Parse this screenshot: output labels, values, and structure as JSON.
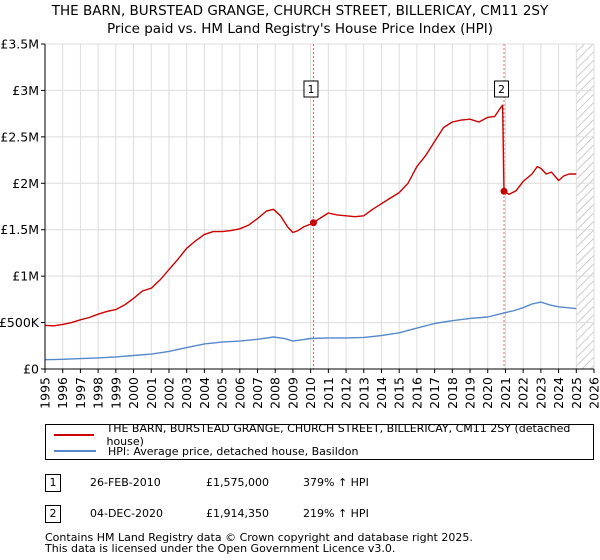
{
  "colors": {
    "property_line": "#cc0000",
    "hpi_line": "#5588cc",
    "grid": "#dddddd",
    "plot_bg": "#ffffff",
    "marker_line": "#e06666",
    "highlight_band": "#e6ecf7"
  },
  "chart_data": {
    "type": "line",
    "title": "THE BARN, BURSTEAD GRANGE, CHURCH STREET, BILLERICAY, CM11 2SY",
    "subtitle": "Price paid vs. HM Land Registry's House Price Index (HPI)",
    "xlim": [
      1995,
      2026
    ],
    "ylim": [
      0,
      3500000
    ],
    "x_ticks": [
      "1995",
      "1996",
      "1997",
      "1998",
      "1999",
      "2000",
      "2001",
      "2002",
      "2003",
      "2004",
      "2005",
      "2006",
      "2007",
      "2008",
      "2009",
      "2010",
      "2011",
      "2012",
      "2013",
      "2014",
      "2015",
      "2016",
      "2017",
      "2018",
      "2019",
      "2020",
      "2021",
      "2022",
      "2023",
      "2024",
      "2025",
      "2026"
    ],
    "y_ticks": [
      {
        "value": 0,
        "label": "£0"
      },
      {
        "value": 500000,
        "label": "£500K"
      },
      {
        "value": 1000000,
        "label": "£1M"
      },
      {
        "value": 1500000,
        "label": "£1.5M"
      },
      {
        "value": 2000000,
        "label": "£2M"
      },
      {
        "value": 2500000,
        "label": "£2.5M"
      },
      {
        "value": 3000000,
        "label": "£3M"
      },
      {
        "value": 3500000,
        "label": "£3.5M"
      }
    ],
    "grid": true,
    "hatched_future_from": 2025.0,
    "series": [
      {
        "name": "THE BARN, BURSTEAD GRANGE, CHURCH STREET, BILLERICAY, CM11 2SY (detached house)",
        "color": "#cc0000",
        "x": [
          1995.0,
          1995.5,
          1996.0,
          1996.5,
          1997.0,
          1997.5,
          1998.0,
          1998.5,
          1999.0,
          1999.5,
          2000.0,
          2000.5,
          2001.0,
          2001.5,
          2002.0,
          2002.5,
          2003.0,
          2003.5,
          2004.0,
          2004.5,
          2005.0,
          2005.5,
          2006.0,
          2006.5,
          2007.0,
          2007.5,
          2007.9,
          2008.3,
          2008.7,
          2009.0,
          2009.3,
          2009.6,
          2010.0,
          2010.16,
          2010.5,
          2011.0,
          2011.5,
          2012.0,
          2012.5,
          2013.0,
          2013.5,
          2014.0,
          2014.5,
          2015.0,
          2015.5,
          2016.0,
          2016.5,
          2017.0,
          2017.5,
          2018.0,
          2018.5,
          2019.0,
          2019.5,
          2020.0,
          2020.4,
          2020.75,
          2020.84,
          2020.92,
          2021.2,
          2021.6,
          2022.0,
          2022.5,
          2022.8,
          2023.0,
          2023.3,
          2023.6,
          2024.0,
          2024.3,
          2024.6,
          2025.0
        ],
        "y": [
          470000,
          465000,
          480000,
          500000,
          530000,
          555000,
          590000,
          620000,
          640000,
          690000,
          760000,
          840000,
          870000,
          960000,
          1070000,
          1180000,
          1300000,
          1380000,
          1450000,
          1480000,
          1480000,
          1490000,
          1510000,
          1550000,
          1620000,
          1700000,
          1720000,
          1650000,
          1530000,
          1470000,
          1490000,
          1530000,
          1560000,
          1575000,
          1620000,
          1680000,
          1660000,
          1650000,
          1640000,
          1650000,
          1720000,
          1780000,
          1840000,
          1900000,
          2000000,
          2180000,
          2300000,
          2450000,
          2600000,
          2660000,
          2680000,
          2690000,
          2660000,
          2710000,
          2720000,
          2820000,
          2840000,
          1914350,
          1880000,
          1920000,
          2020000,
          2100000,
          2180000,
          2160000,
          2100000,
          2120000,
          2030000,
          2080000,
          2100000,
          2100000
        ]
      },
      {
        "name": "HPI: Average price, detached house, Basildon",
        "color": "#5588cc",
        "x": [
          1995.0,
          1996.0,
          1997.0,
          1998.0,
          1999.0,
          2000.0,
          2001.0,
          2002.0,
          2003.0,
          2004.0,
          2005.0,
          2006.0,
          2007.0,
          2007.9,
          2008.5,
          2009.0,
          2009.5,
          2010.0,
          2011.0,
          2012.0,
          2013.0,
          2014.0,
          2015.0,
          2016.0,
          2017.0,
          2018.0,
          2019.0,
          2020.0,
          2020.84,
          2021.5,
          2022.0,
          2022.5,
          2023.0,
          2023.5,
          2024.0,
          2024.5,
          2025.0
        ],
        "y": [
          100000,
          105000,
          112000,
          120000,
          130000,
          145000,
          160000,
          190000,
          230000,
          270000,
          290000,
          300000,
          320000,
          345000,
          330000,
          300000,
          315000,
          328000,
          335000,
          335000,
          340000,
          360000,
          390000,
          440000,
          490000,
          520000,
          545000,
          560000,
          600000,
          630000,
          660000,
          700000,
          720000,
          690000,
          670000,
          660000,
          650000
        ]
      }
    ],
    "transactions": [
      {
        "label": "1",
        "x": 2010.16,
        "price": 1575000
      },
      {
        "label": "2",
        "x": 2020.92,
        "price": 1914350
      }
    ]
  },
  "header": {
    "title": "THE BARN, BURSTEAD GRANGE, CHURCH STREET, BILLERICAY, CM11 2SY",
    "subtitle": "Price paid vs. HM Land Registry's House Price Index (HPI)"
  },
  "legend": {
    "property": "THE BARN, BURSTEAD GRANGE, CHURCH STREET, BILLERICAY, CM11 2SY (detached house)",
    "hpi": "HPI: Average price, detached house, Basildon"
  },
  "transactions": [
    {
      "label": "1",
      "date": "26-FEB-2010",
      "price": "£1,575,000",
      "hpi": "379% ↑ HPI"
    },
    {
      "label": "2",
      "date": "04-DEC-2020",
      "price": "£1,914,350",
      "hpi": "219% ↑ HPI"
    }
  ],
  "footer": {
    "line1": "Contains HM Land Registry data © Crown copyright and database right 2025.",
    "line2": "This data is licensed under the Open Government Licence v3.0."
  }
}
